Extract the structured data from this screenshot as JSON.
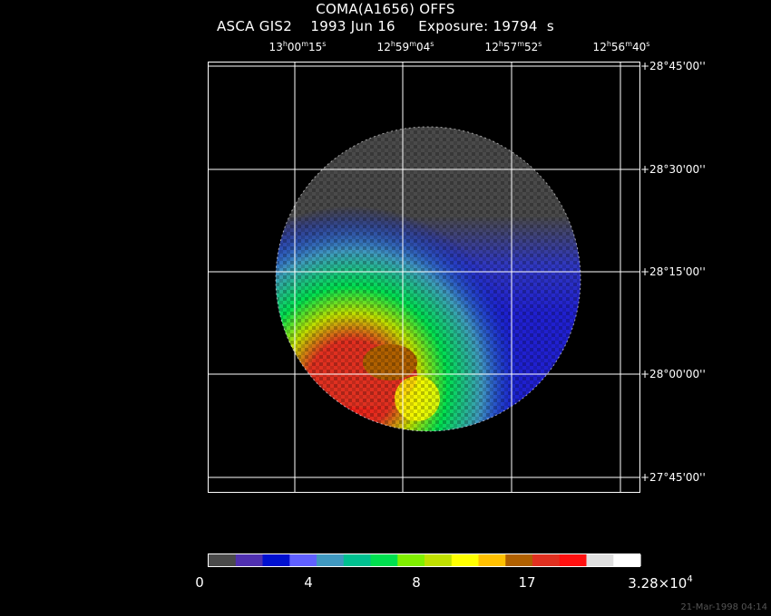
{
  "title": {
    "line1": "COMA(A1656) OFFS",
    "line2": "ASCA GIS2    1993 Jun 16     Exposure: 19794  s"
  },
  "ra_labels": [
    {
      "h": "13",
      "m": "00",
      "s": "15"
    },
    {
      "h": "12",
      "m": "59",
      "s": "04"
    },
    {
      "h": "12",
      "m": "57",
      "s": "52"
    },
    {
      "h": "12",
      "m": "56",
      "s": "40"
    }
  ],
  "dec_labels": [
    "+28°45'00''",
    "+28°30'00''",
    "+28°15'00''",
    "+28°00'00''",
    "+27°45'00''"
  ],
  "colorbar": {
    "colors": [
      "#4a4a4a",
      "#5030b0",
      "#0010d0",
      "#6060ff",
      "#4098c0",
      "#00c090",
      "#00e050",
      "#80f000",
      "#c0e000",
      "#ffff00",
      "#ffc000",
      "#b06000",
      "#e03020",
      "#ff1010",
      "#e0e0e0",
      "#ffffff"
    ],
    "ticks": [
      "0",
      "4",
      "8",
      "17"
    ],
    "max_label_mantissa": "3.28×10",
    "max_label_exp": "4"
  },
  "timestamp": "21-Mar-1998 04:14"
}
